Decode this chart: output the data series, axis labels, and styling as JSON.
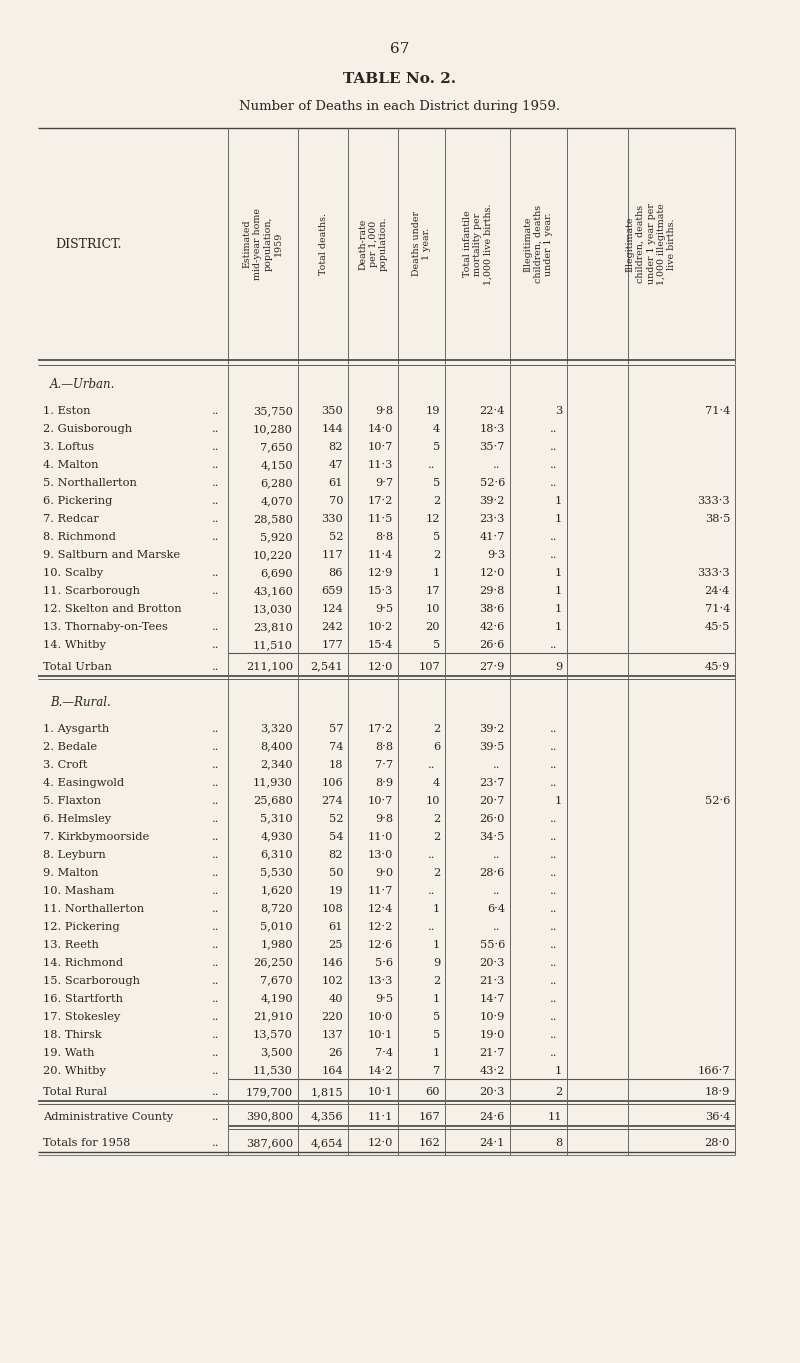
{
  "page_number": "67",
  "title": "TABLE No. 2.",
  "subtitle": "Number of Deaths in each District during 1959.",
  "bg_color": "#f5f0e8",
  "text_color": "#2a2520",
  "col_headers": [
    "Estimated\nmid-year home\npopulation,\n1959",
    "Total deaths.",
    "Death-rate\nper 1,000\npopulation.",
    "Deaths under\n1 year.",
    "Total infantile\nmortality per\n1,000 live births.",
    "Illegitimate\nchildren, deaths\nunder 1 year.",
    "Illegitimate\nchildren, deaths\nunder 1 year per\n1,000 illegitmate\nlive births."
  ],
  "section_a_header": "A.—Urban.",
  "urban_rows": [
    [
      "1. Eston",
      "..",
      "35,750",
      "350",
      "9·8",
      "19",
      "22·4",
      "3",
      "71·4"
    ],
    [
      "2. Guisborough",
      "..",
      "10,280",
      "144",
      "14·0",
      "4",
      "18·3",
      "..",
      ""
    ],
    [
      "3. Loftus",
      "..",
      "7,650",
      "82",
      "10·7",
      "5",
      "35·7",
      "..",
      ""
    ],
    [
      "4. Malton",
      "..",
      "4,150",
      "47",
      "11·3",
      "..",
      "..",
      "..",
      ""
    ],
    [
      "5. Northallerton",
      "..",
      "6,280",
      "61",
      "9·7",
      "5",
      "52·6",
      "..",
      ""
    ],
    [
      "6. Pickering",
      "..",
      "4,070",
      "70",
      "17·2",
      "2",
      "39·2",
      "1",
      "333·3"
    ],
    [
      "7. Redcar",
      "..",
      "28,580",
      "330",
      "11·5",
      "12",
      "23·3",
      "1",
      "38·5"
    ],
    [
      "8. Richmond",
      "..",
      "5,920",
      "52",
      "8·8",
      "5",
      "41·7",
      "..",
      ""
    ],
    [
      "9. Saltburn and Marske",
      "",
      "10,220",
      "117",
      "11·4",
      "2",
      "9·3",
      "..",
      ""
    ],
    [
      "10. Scalby",
      "..",
      "6,690",
      "86",
      "12·9",
      "1",
      "12·0",
      "1",
      "333·3"
    ],
    [
      "11. Scarborough",
      "..",
      "43,160",
      "659",
      "15·3",
      "17",
      "29·8",
      "1",
      "24·4"
    ],
    [
      "12. Skelton and Brotton",
      "",
      "13,030",
      "124",
      "9·5",
      "10",
      "38·6",
      "1",
      "71·4"
    ],
    [
      "13. Thornaby-on-Tees",
      "..",
      "23,810",
      "242",
      "10·2",
      "20",
      "42·6",
      "1",
      "45·5"
    ],
    [
      "14. Whitby",
      "..",
      "11,510",
      "177",
      "15·4",
      "5",
      "26·6",
      "..",
      ""
    ]
  ],
  "urban_total": [
    "Total Urban",
    "..",
    "211,100",
    "2,541",
    "12·0",
    "107",
    "27·9",
    "9",
    "45·9"
  ],
  "section_b_header": "B.—Rural.",
  "rural_rows": [
    [
      "1. Aysgarth",
      "..",
      "3,320",
      "57",
      "17·2",
      "2",
      "39·2",
      "..",
      ""
    ],
    [
      "2. Bedale",
      "..",
      "8,400",
      "74",
      "8·8",
      "6",
      "39·5",
      "..",
      ""
    ],
    [
      "3. Croft",
      "..",
      "2,340",
      "18",
      "7·7",
      "..",
      "..",
      "..",
      ""
    ],
    [
      "4. Easingwold",
      "..",
      "11,930",
      "106",
      "8·9",
      "4",
      "23·7",
      "..",
      ""
    ],
    [
      "5. Flaxton",
      "..",
      "25,680",
      "274",
      "10·7",
      "10",
      "20·7",
      "1",
      "52·6"
    ],
    [
      "6. Helmsley",
      "..",
      "5,310",
      "52",
      "9·8",
      "2",
      "26·0",
      "..",
      ""
    ],
    [
      "7. Kirkbymoorside",
      "..",
      "4,930",
      "54",
      "11·0",
      "2",
      "34·5",
      "..",
      ""
    ],
    [
      "8. Leyburn",
      "..",
      "6,310",
      "82",
      "13·0",
      "..",
      "..",
      "..",
      ""
    ],
    [
      "9. Malton",
      "..",
      "5,530",
      "50",
      "9·0",
      "2",
      "28·6",
      "..",
      ""
    ],
    [
      "10. Masham",
      "..",
      "1,620",
      "19",
      "11·7",
      "..",
      "..",
      "..",
      ""
    ],
    [
      "11. Northallerton",
      "..",
      "8,720",
      "108",
      "12·4",
      "1",
      "6·4",
      "..",
      ""
    ],
    [
      "12. Pickering",
      "..",
      "5,010",
      "61",
      "12·2",
      "..",
      "..",
      "..",
      ""
    ],
    [
      "13. Reeth",
      "..",
      "1,980",
      "25",
      "12·6",
      "1",
      "55·6",
      "..",
      ""
    ],
    [
      "14. Richmond",
      "..",
      "26,250",
      "146",
      "5·6",
      "9",
      "20·3",
      "..",
      ""
    ],
    [
      "15. Scarborough",
      "..",
      "7,670",
      "102",
      "13·3",
      "2",
      "21·3",
      "..",
      ""
    ],
    [
      "16. Startforth",
      "..",
      "4,190",
      "40",
      "9·5",
      "1",
      "14·7",
      "..",
      ""
    ],
    [
      "17. Stokesley",
      "..",
      "21,910",
      "220",
      "10·0",
      "5",
      "10·9",
      "..",
      ""
    ],
    [
      "18. Thirsk",
      "..",
      "13,570",
      "137",
      "10·1",
      "5",
      "19·0",
      "..",
      ""
    ],
    [
      "19. Wath",
      "..",
      "3,500",
      "26",
      "7·4",
      "1",
      "21·7",
      "..",
      ""
    ],
    [
      "20. Whitby",
      "..",
      "11,530",
      "164",
      "14·2",
      "7",
      "43·2",
      "1",
      "166·7"
    ]
  ],
  "rural_total": [
    "Total Rural",
    "..",
    "179,700",
    "1,815",
    "10·1",
    "60",
    "20·3",
    "2",
    "18·9"
  ],
  "admin_county": [
    "Administrative County",
    "..",
    "390,800",
    "4,356",
    "11·1",
    "167",
    "24·6",
    "11",
    "36·4"
  ],
  "totals_1958": [
    "Totals for 1958",
    "..",
    "387,600",
    "4,654",
    "12·0",
    "162",
    "24·1",
    "8",
    "28·0"
  ]
}
